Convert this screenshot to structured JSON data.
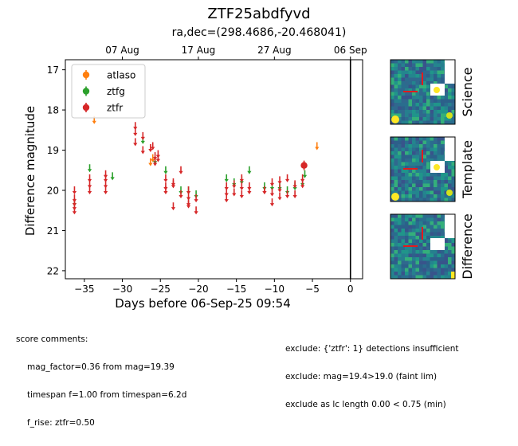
{
  "header": {
    "title": "ZTF25abdfyvd",
    "subtitle": "ra,dec=(298.4686,-20.468041)"
  },
  "chart_data": {
    "type": "scatter",
    "xlabel": "Days before 06-Sep-25 09:54",
    "ylabel": "Difference magnitude",
    "xlim": [
      -37.5,
      1.6
    ],
    "ylim": [
      22.2,
      16.75
    ],
    "y_inverted": true,
    "x_ticks": [
      -35,
      -30,
      -25,
      -20,
      -15,
      -10,
      -5,
      0
    ],
    "x_tick_labels": [
      "−35",
      "−30",
      "−25",
      "−20",
      "−15",
      "−10",
      "−5",
      "0"
    ],
    "y_ticks": [
      17,
      18,
      19,
      20,
      21,
      22
    ],
    "y_tick_labels": [
      "17",
      "18",
      "19",
      "20",
      "21",
      "22"
    ],
    "top_axis": {
      "ticks": [
        -30,
        -20,
        -10,
        0
      ],
      "labels": [
        "07 Aug",
        "17 Aug",
        "27 Aug",
        "06 Sep"
      ]
    },
    "vertical_line_x": 0,
    "legend": {
      "placement": "top-left",
      "entries": [
        "atlaso",
        "ztfg",
        "ztfr"
      ]
    },
    "series": [
      {
        "name": "atlaso",
        "color": "#ff7f0e",
        "marker": "arrow",
        "x": [
          -33.7,
          -26.3,
          -26.0,
          -4.4
        ],
        "y": [
          18.25,
          19.3,
          19.2,
          18.9
        ]
      },
      {
        "name": "ztfg",
        "color": "#2ca02c",
        "marker": "arrow",
        "x": [
          -36.3,
          -34.3,
          -31.3,
          -27.3,
          -25.7,
          -24.3,
          -22.3,
          -21.3,
          -20.3,
          -16.3,
          -15.3,
          -14.3,
          -13.3,
          -11.3,
          -10.3,
          -9.3,
          -8.3,
          -7.3,
          -6.3,
          -6.0
        ],
        "y": [
          20.3,
          19.45,
          19.65,
          18.75,
          19.25,
          19.5,
          20.0,
          20.0,
          20.1,
          19.7,
          19.8,
          19.75,
          19.5,
          19.9,
          19.9,
          19.9,
          20.0,
          19.9,
          19.8,
          19.6
        ]
      },
      {
        "name": "ztfr",
        "color": "#d62728",
        "marker": "arrow",
        "x": [
          -36.3,
          -36.3,
          -36.3,
          -36.3,
          -36.3,
          -34.3,
          -34.3,
          -34.3,
          -32.2,
          -32.2,
          -32.2,
          -32.2,
          -28.3,
          -28.3,
          -28.3,
          -27.3,
          -27.3,
          -26.3,
          -26.0,
          -25.7,
          -25.7,
          -25.3,
          -25.3,
          -24.3,
          -24.3,
          -24.3,
          -23.3,
          -23.3,
          -23.3,
          -22.3,
          -22.3,
          -21.3,
          -21.3,
          -21.3,
          -21.3,
          -20.3,
          -20.3,
          -16.3,
          -16.3,
          -16.3,
          -15.3,
          -15.3,
          -14.3,
          -14.3,
          -14.3,
          -13.3,
          -13.3,
          -11.3,
          -11.3,
          -10.3,
          -10.3,
          -10.3,
          -9.3,
          -9.3,
          -9.3,
          -8.3,
          -8.3,
          -7.3,
          -7.3,
          -6.3,
          -6.3
        ],
        "y": [
          20.0,
          20.2,
          20.3,
          20.4,
          20.5,
          19.7,
          19.85,
          20.0,
          19.6,
          19.7,
          19.85,
          20.0,
          18.4,
          18.55,
          18.8,
          18.65,
          19.0,
          18.95,
          18.9,
          19.15,
          19.3,
          19.1,
          19.2,
          19.7,
          19.9,
          20.0,
          19.8,
          19.85,
          20.4,
          19.5,
          20.1,
          20.0,
          20.15,
          20.3,
          20.35,
          20.2,
          20.5,
          19.9,
          20.05,
          20.2,
          19.85,
          20.05,
          19.7,
          19.9,
          20.1,
          19.9,
          20.0,
          20.0,
          20.0,
          19.8,
          20.05,
          20.3,
          19.75,
          19.95,
          20.15,
          19.7,
          20.1,
          19.85,
          20.1,
          19.7,
          19.85
        ]
      },
      {
        "name": "ztfr detection",
        "color": "#d62728",
        "marker": "circle",
        "x": [
          -6.1
        ],
        "y": [
          19.38
        ],
        "yerr": [
          0.12
        ]
      }
    ]
  },
  "thumbnails": [
    {
      "label": "Science"
    },
    {
      "label": "Template"
    },
    {
      "label": "Difference"
    }
  ],
  "comments": {
    "left_header": "score comments:",
    "left_lines": [
      "mag_factor=0.36 from mag=19.39",
      "timespan f=1.00 from timespan=6.2d",
      "f_rise: ztfr=0.50"
    ],
    "right_lines": [
      "exclude: {'ztfr': 1} detections insufficient",
      "exclude: mag=19.4>19.0 (faint lim)",
      "exclude as lc length 0.00 < 0.75 (min)"
    ]
  }
}
